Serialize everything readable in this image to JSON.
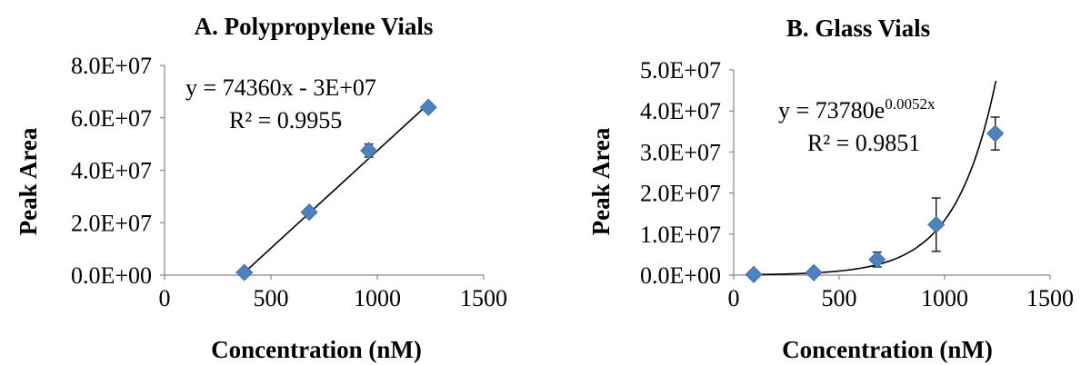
{
  "chart_data": [
    {
      "type": "scatter",
      "title": "A. Polypropylene Vials",
      "xlabel": "Concentration (nM)",
      "ylabel": "Peak Area",
      "xlim": [
        0,
        1500
      ],
      "ylim": [
        0,
        80000000
      ],
      "x_ticks": [
        "0",
        "500",
        "1000",
        "1500"
      ],
      "y_ticks": [
        "0.0E+00",
        "2.0E+07",
        "4.0E+07",
        "6.0E+07",
        "8.0E+07"
      ],
      "grid": false,
      "legend": "none",
      "marker_color": "#4f81bd",
      "series": [
        {
          "x": [
            375,
            680,
            960,
            1240
          ],
          "y": [
            1000000,
            24000000,
            47500000,
            64000000
          ],
          "error": [
            500000,
            800000,
            2500000,
            1200000
          ]
        }
      ],
      "trendline": {
        "kind": "linear",
        "equation": "y = 74360x - 3E+07",
        "r2": "R² = 0.9955",
        "slope": 74360,
        "intercept": -26900000,
        "x_range": [
          375,
          1240
        ]
      }
    },
    {
      "type": "scatter",
      "title": "B. Glass Vials",
      "xlabel": "Concentration (nM)",
      "ylabel": "Peak Area",
      "xlim": [
        0,
        1500
      ],
      "ylim": [
        0,
        50000000
      ],
      "x_ticks": [
        "0",
        "500",
        "1000",
        "1500"
      ],
      "y_ticks": [
        "0.0E+00",
        "1.0E+07",
        "2.0E+07",
        "3.0E+07",
        "4.0E+07",
        "5.0E+07"
      ],
      "grid": false,
      "legend": "none",
      "marker_color": "#4f81bd",
      "series": [
        {
          "x": [
            95,
            380,
            680,
            960,
            1240
          ],
          "y": [
            150000,
            600000,
            3800000,
            12300000,
            34500000
          ],
          "error": [
            100000,
            200000,
            1800000,
            6500000,
            4000000
          ]
        }
      ],
      "trendline": {
        "kind": "exponential",
        "equation_base": "y = 73780e",
        "equation_exp": "0.0052x",
        "r2": "R² = 0.9851",
        "a": 73780,
        "b": 0.0052,
        "x_range": [
          95,
          1243
        ]
      }
    }
  ]
}
